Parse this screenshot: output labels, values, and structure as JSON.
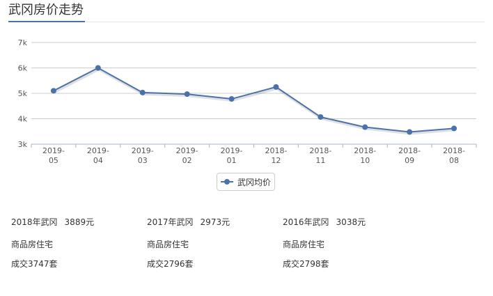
{
  "page": {
    "title": "武冈房价走势",
    "accent_color": "#4a72a8"
  },
  "chart_data": {
    "type": "line",
    "title": "",
    "xlabel": "",
    "ylabel": "",
    "categories": [
      "2019-05",
      "2019-04",
      "2019-03",
      "2019-02",
      "2019-01",
      "2018-12",
      "2018-11",
      "2018-10",
      "2018-09",
      "2018-08"
    ],
    "series": [
      {
        "name": "武冈均价",
        "color": "#4a72a8",
        "values": [
          5100,
          6000,
          5030,
          4970,
          4780,
          5250,
          4070,
          3670,
          3480,
          3620
        ]
      }
    ],
    "ylim": [
      3000,
      7000
    ],
    "yticks": [
      3000,
      4000,
      5000,
      6000,
      7000
    ],
    "ytick_labels": [
      "3k",
      "4k",
      "5k",
      "6k",
      "7k"
    ],
    "grid": true,
    "legend_position": "bottom-center"
  },
  "stats": [
    {
      "year_label": "2018年武冈",
      "price": "3889元",
      "type": "商品房住宅",
      "deals": "成交3747套"
    },
    {
      "year_label": "2017年武冈",
      "price": "2973元",
      "type": "商品房住宅",
      "deals": "成交2796套"
    },
    {
      "year_label": "2016年武冈",
      "price": "3038元",
      "type": "商品房住宅",
      "deals": "成交2798套"
    }
  ]
}
